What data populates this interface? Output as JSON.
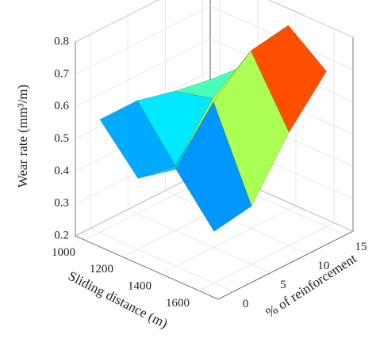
{
  "chart_data": {
    "type": "surface",
    "zlabel": "Wear rate (mm³/m)",
    "xlabel": "Sliding distance (m)",
    "ylabel": "% of reinforcement",
    "x": [
      1000,
      1200,
      1400,
      1600
    ],
    "y": [
      0,
      5,
      10,
      15
    ],
    "z": [
      [
        0.55,
        0.42,
        0.5,
        0.36
      ],
      [
        0.55,
        0.4,
        0.65,
        0.38
      ],
      [
        0.52,
        0.55,
        0.75,
        0.55
      ],
      [
        0.5,
        0.6,
        0.77,
        0.68
      ]
    ],
    "xlim": [
      950,
      1700
    ],
    "xticks": [
      1000,
      1200,
      1400,
      1600
    ],
    "ylim": [
      -2,
      16
    ],
    "yticks": [
      0,
      5,
      10,
      15
    ],
    "zlim": [
      0.2,
      0.8
    ],
    "zticks": [
      0.2,
      0.3,
      0.4,
      0.5,
      0.6,
      0.7,
      0.8
    ],
    "colormap": "jet",
    "grid": true
  }
}
